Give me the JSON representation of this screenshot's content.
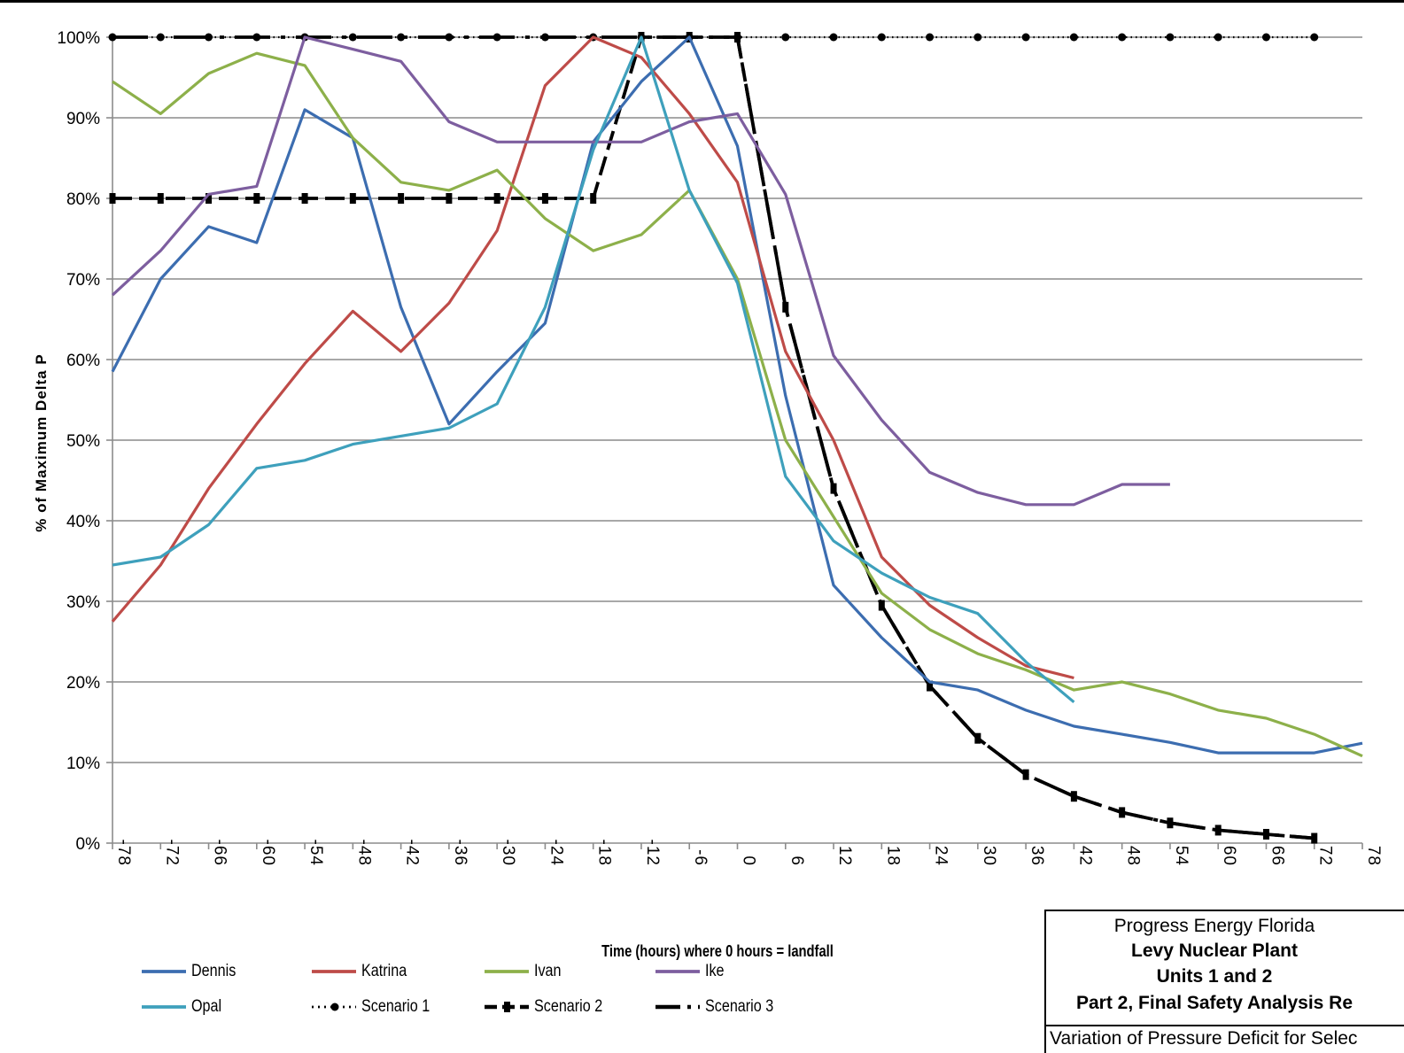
{
  "chart_data": {
    "type": "line",
    "title": "",
    "xlabel": "Time (hours) where 0 hours = landfall",
    "ylabel": "% of Maximum Delta P",
    "xlim": [
      -78,
      78
    ],
    "ylim": [
      0,
      100
    ],
    "x_ticks": [
      -78,
      -72,
      -66,
      -60,
      -54,
      -48,
      -42,
      -36,
      -30,
      -24,
      -18,
      -12,
      -6,
      0,
      6,
      12,
      18,
      24,
      30,
      36,
      42,
      48,
      54,
      60,
      66,
      72,
      78
    ],
    "y_ticks": [
      0,
      10,
      20,
      30,
      40,
      50,
      60,
      70,
      80,
      90,
      100
    ],
    "y_tick_suffix": "%",
    "grid": "horizontal",
    "legend_position": "bottom",
    "series": [
      {
        "name": "Dennis",
        "color": "#3C6DB0",
        "style": "solid",
        "x": [
          -78,
          -72,
          -66,
          -60,
          -54,
          -48,
          -42,
          -36,
          -30,
          -24,
          -18,
          -12,
          -6,
          0,
          6,
          12,
          18,
          24,
          30,
          36,
          42,
          48,
          54,
          60,
          66,
          72,
          78
        ],
        "y": [
          58.5,
          70,
          76.5,
          74.5,
          91,
          87.5,
          66.5,
          52,
          58.5,
          64.5,
          87,
          94.5,
          100,
          86.5,
          55.5,
          32,
          25.5,
          20,
          19,
          16.5,
          14.5,
          13.5,
          12.5,
          11.2,
          11.2,
          11.2,
          12.4
        ]
      },
      {
        "name": "Katrina",
        "color": "#BE4B48",
        "style": "solid",
        "x": [
          -78,
          -72,
          -66,
          -60,
          -54,
          -48,
          -42,
          -36,
          -30,
          -24,
          -18,
          -12,
          -6,
          0,
          6,
          12,
          18,
          24,
          30,
          36,
          42
        ],
        "y": [
          27.5,
          34.5,
          44,
          52,
          59.5,
          66,
          61,
          67,
          76,
          94,
          100,
          97.5,
          90.5,
          82,
          61,
          50,
          35.5,
          29.5,
          25.5,
          22,
          20.5
        ]
      },
      {
        "name": "Ivan",
        "color": "#8DB04A",
        "style": "solid",
        "x": [
          -78,
          -72,
          -66,
          -60,
          -54,
          -48,
          -42,
          -36,
          -30,
          -24,
          -18,
          -12,
          -6,
          0,
          6,
          12,
          18,
          24,
          30,
          36,
          42,
          48,
          54,
          60,
          66,
          72,
          78
        ],
        "y": [
          94.5,
          90.5,
          95.5,
          98,
          96.5,
          87.5,
          82,
          81,
          83.5,
          77.5,
          73.5,
          75.5,
          81,
          70,
          50,
          40.5,
          31,
          26.5,
          23.5,
          21.5,
          19,
          20,
          18.5,
          16.5,
          15.5,
          13.5,
          10.8
        ]
      },
      {
        "name": "Ike",
        "color": "#7D5E9F",
        "style": "solid",
        "x": [
          -78,
          -72,
          -66,
          -60,
          -54,
          -48,
          -42,
          -36,
          -30,
          -24,
          -18,
          -12,
          -6,
          0,
          6,
          12,
          18,
          24,
          30,
          36,
          42,
          48,
          54
        ],
        "y": [
          68,
          73.5,
          80.5,
          81.5,
          100,
          98.5,
          97,
          89.5,
          87,
          87,
          87,
          87,
          89.5,
          90.5,
          80.5,
          60.5,
          52.5,
          46,
          43.5,
          42,
          42,
          44.5,
          44.5
        ]
      },
      {
        "name": "Opal",
        "color": "#3EA0BC",
        "style": "solid",
        "x": [
          -78,
          -72,
          -66,
          -60,
          -54,
          -48,
          -42,
          -36,
          -30,
          -24,
          -18,
          -12,
          -6,
          0,
          6,
          12,
          18,
          24,
          30,
          36,
          42
        ],
        "y": [
          34.5,
          35.5,
          39.5,
          46.5,
          47.5,
          49.5,
          50.5,
          51.5,
          54.5,
          66.5,
          86,
          100,
          81,
          69.5,
          45.5,
          37.5,
          33.5,
          30.5,
          28.5,
          22.5,
          17.5
        ]
      },
      {
        "name": "Scenario 1",
        "color": "#000000",
        "style": "dotted",
        "x": [
          -78,
          -72,
          -66,
          -60,
          -54,
          -48,
          -42,
          -36,
          -30,
          -24,
          -18,
          -12,
          -6,
          0,
          6,
          12,
          18,
          24,
          30,
          36,
          42,
          48,
          54,
          60,
          66,
          72
        ],
        "y": [
          100,
          100,
          100,
          100,
          100,
          100,
          100,
          100,
          100,
          100,
          100,
          100,
          100,
          100,
          100,
          100,
          100,
          100,
          100,
          100,
          100,
          100,
          100,
          100,
          100,
          100
        ]
      },
      {
        "name": "Scenario 2",
        "color": "#000000",
        "style": "dashed",
        "x": [
          -78,
          -72,
          -66,
          -60,
          -54,
          -48,
          -42,
          -36,
          -30,
          -24,
          -18,
          -12,
          -6,
          0,
          6,
          12,
          18,
          24,
          30,
          36,
          42,
          48,
          54,
          60,
          66,
          72
        ],
        "y": [
          80,
          80,
          80,
          80,
          80,
          80,
          80,
          80,
          80,
          80,
          80,
          100,
          100,
          100,
          66.5,
          44,
          29.5,
          19.5,
          13,
          8.5,
          5.8,
          3.8,
          2.5,
          1.6,
          1.1,
          0.6
        ]
      },
      {
        "name": "Scenario 3",
        "color": "#000000",
        "style": "longdash",
        "x": [
          -78,
          -72,
          -66,
          -60,
          -54,
          -48,
          -42,
          -36,
          -30,
          -24,
          -18,
          -12,
          -6,
          0,
          6,
          12,
          18,
          24,
          30,
          36,
          42,
          48,
          54,
          60,
          66,
          72
        ],
        "y": [
          100,
          100,
          100,
          100,
          100,
          100,
          100,
          100,
          100,
          100,
          100,
          100,
          100,
          100,
          66.5,
          44,
          29.5,
          19.5,
          13,
          8.5,
          5.8,
          3.8,
          2.5,
          1.6,
          1.1,
          0.6
        ]
      }
    ]
  },
  "title_block": {
    "company": "Progress Energy Florida",
    "plant": "Levy Nuclear Plant",
    "units": "Units 1 and 2",
    "part": "Part 2, Final Safety Analysis Re",
    "caption": "Variation of Pressure Deficit for Selec"
  }
}
